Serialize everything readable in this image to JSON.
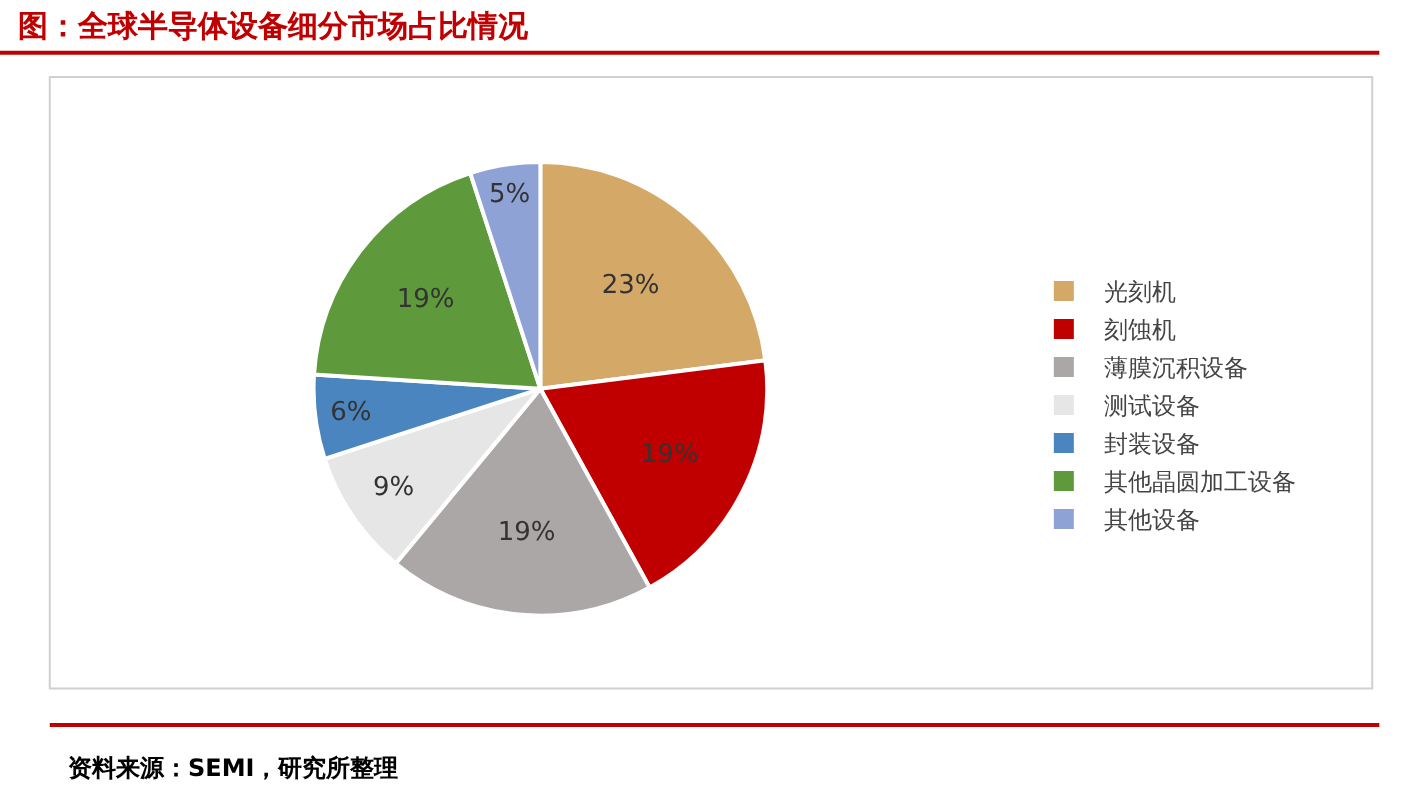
{
  "chart_data": {
    "type": "pie",
    "title": "图：全球半导体设备细分市场占比情况",
    "categories": [
      "光刻机",
      "刻蚀机",
      "薄膜沉积设备",
      "测试设备",
      "封装设备",
      "其他晶圆加工设备",
      "其他设备"
    ],
    "values": [
      23,
      19,
      19,
      9,
      6,
      19,
      5
    ],
    "value_labels": [
      "23%",
      "19%",
      "19%",
      "9%",
      "6%",
      "19%",
      "5%"
    ],
    "colors": [
      "#d4a866",
      "#c00000",
      "#aba7a6",
      "#e6e6e6",
      "#4a85bf",
      "#5e9a3c",
      "#8fa2d6"
    ],
    "legend": "right",
    "annotations": [
      "资料来源：SEMI，研究所整理"
    ]
  }
}
